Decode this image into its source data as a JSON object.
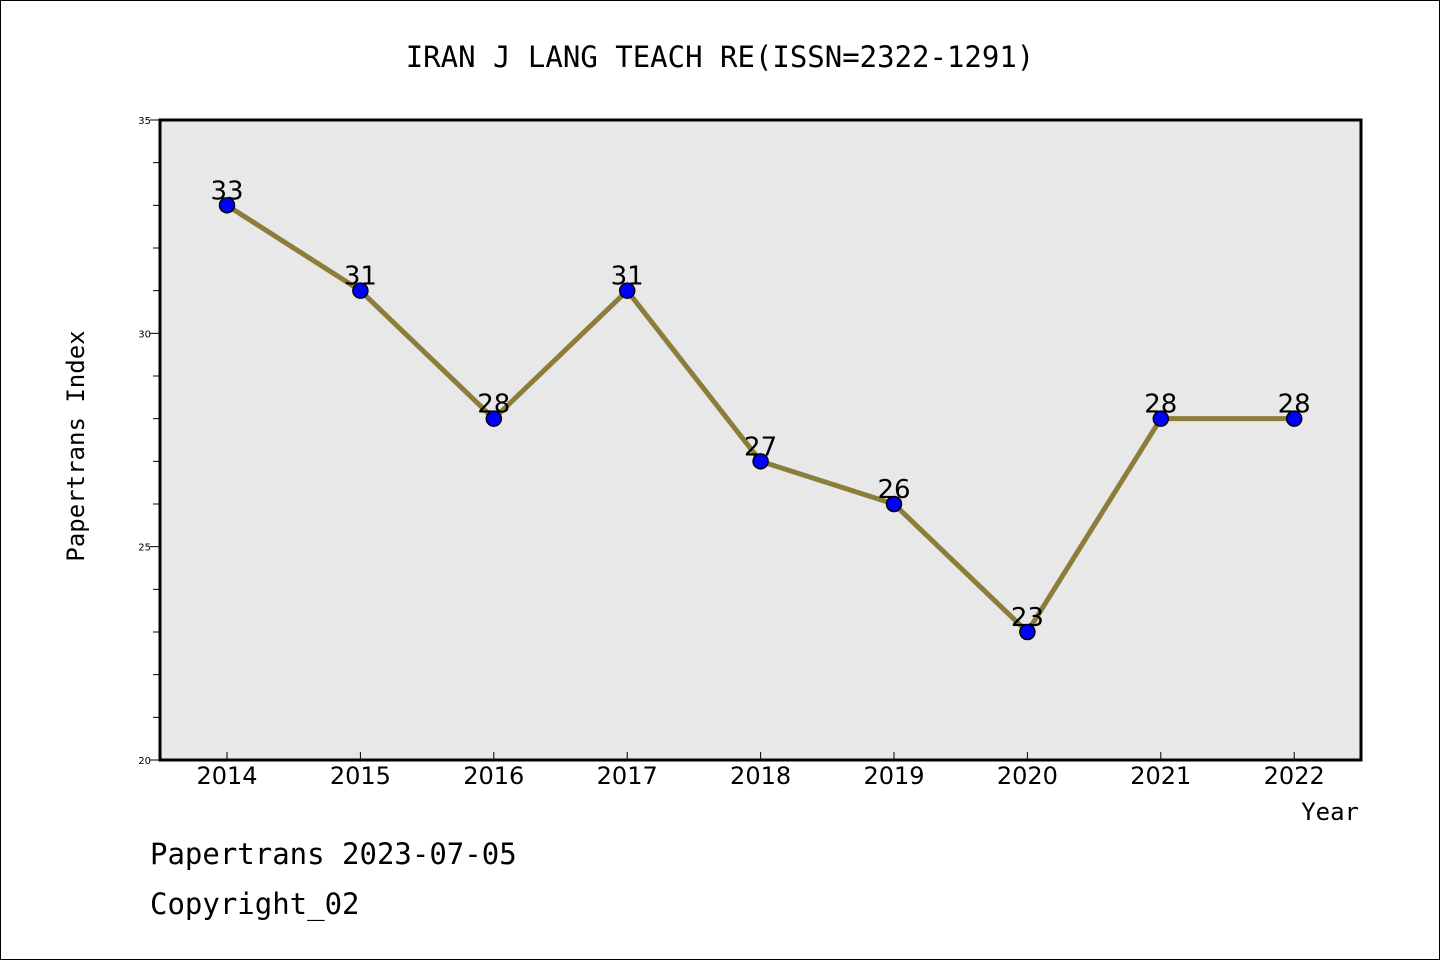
{
  "chart_data": {
    "type": "line",
    "title": "IRAN J LANG TEACH RE(ISSN=2322-1291)",
    "xlabel": "Year",
    "ylabel": "Papertrans Index",
    "categories": [
      "2014",
      "2015",
      "2016",
      "2017",
      "2018",
      "2019",
      "2020",
      "2021",
      "2022"
    ],
    "values": [
      33,
      31,
      28,
      31,
      27,
      26,
      23,
      28,
      28
    ],
    "ylim": [
      20,
      35
    ],
    "yticks": [
      20,
      25,
      30,
      35
    ],
    "yminor_step": 1,
    "grid": false,
    "legend": "none",
    "line_color": "#8b7d3a",
    "marker_color": "#0000ff",
    "plot_background": "#e8e8e8"
  },
  "footer": {
    "source": "Papertrans 2023-07-05",
    "copyright": "Copyright_02"
  }
}
